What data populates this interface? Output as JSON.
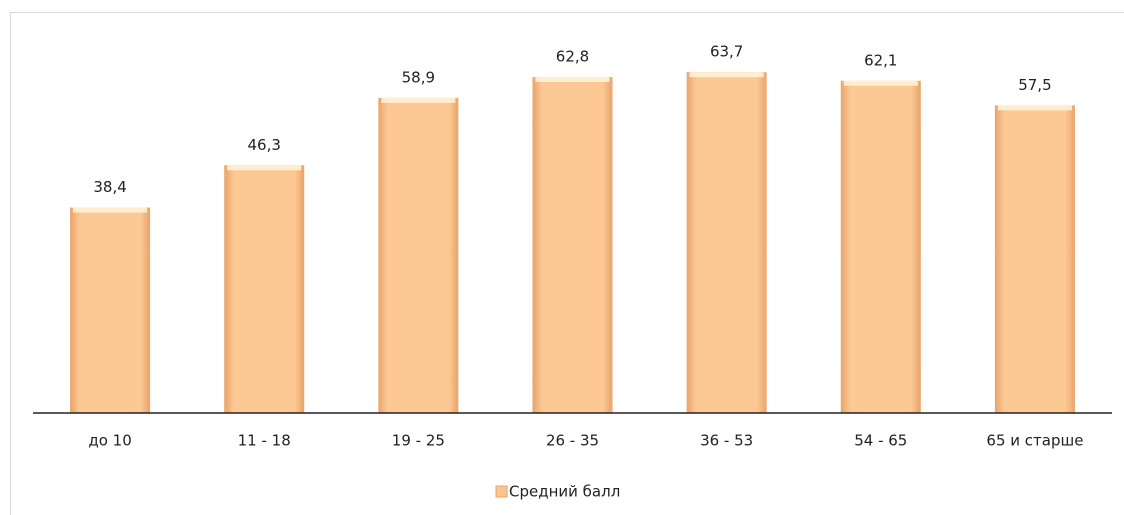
{
  "chart_data": {
    "type": "bar",
    "categories": [
      "до 10",
      "11 - 18",
      "19 - 25",
      "26 - 35",
      "36 - 53",
      "54 - 65",
      "65 и старше"
    ],
    "series": [
      {
        "name": "Средний балл",
        "color": "#fbc592",
        "values": [
          38.4,
          46.3,
          58.9,
          62.8,
          63.7,
          62.1,
          57.5
        ],
        "value_labels": [
          "38,4",
          "46,3",
          "58,9",
          "62,8",
          "63,7",
          "62,1",
          "57,5"
        ]
      }
    ],
    "legend": "bottom"
  }
}
